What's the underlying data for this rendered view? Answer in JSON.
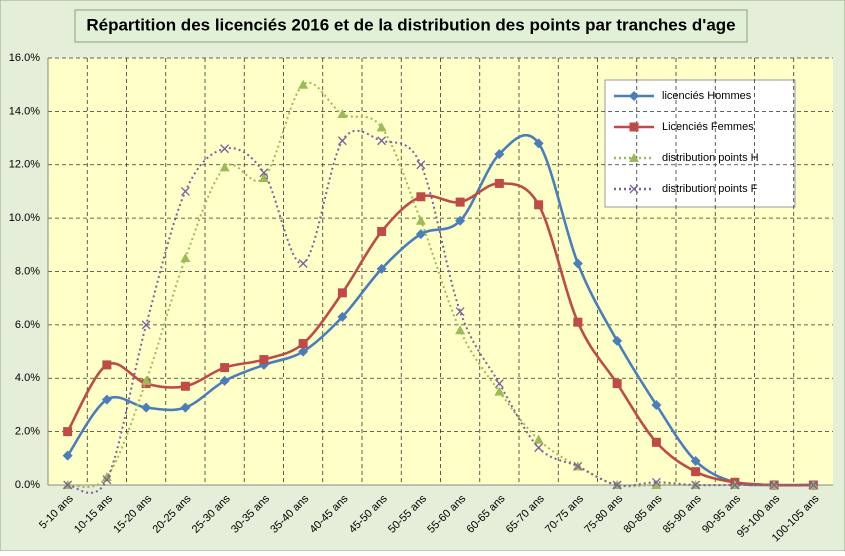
{
  "chart_data": {
    "type": "line",
    "title": "Répartition des licenciés 2016 et de la distribution des points par tranches d'age",
    "categories": [
      "5-10 ans",
      "10-15 ans",
      "15-20 ans",
      "20-25 ans",
      "25-30 ans",
      "30-35 ans",
      "35-40 ans",
      "40-45 ans",
      "45-50 ans",
      "50-55 ans",
      "55-60 ans",
      "60-65 ans",
      "65-70 ans",
      "70-75 ans",
      "75-80 ans",
      "80-85 ans",
      "85-90 ans",
      "90-95 ans",
      "95-100 ans",
      "100-105 ans"
    ],
    "series": [
      {
        "name": "licenciés Hommes",
        "color": "#4a7ebb",
        "marker": "diamond",
        "style": "solid",
        "values": [
          1.1,
          3.2,
          2.9,
          2.9,
          3.9,
          4.5,
          5.0,
          6.3,
          8.1,
          9.4,
          9.9,
          12.4,
          12.8,
          8.3,
          5.4,
          3.0,
          0.9,
          0.1,
          0,
          0
        ]
      },
      {
        "name": "Licenciés Femmes",
        "color": "#be4b48",
        "marker": "square",
        "style": "solid",
        "values": [
          2.0,
          4.5,
          3.8,
          3.7,
          4.4,
          4.7,
          5.3,
          7.2,
          9.5,
          10.8,
          10.6,
          11.3,
          10.5,
          6.1,
          3.8,
          1.6,
          0.5,
          0.1,
          0,
          0
        ]
      },
      {
        "name": "distribution points  H",
        "color": "#9bbb59",
        "marker": "triangle",
        "style": "dotted",
        "values": [
          0,
          0.3,
          3.9,
          8.5,
          11.9,
          11.5,
          15.0,
          13.9,
          13.4,
          9.9,
          5.8,
          3.5,
          1.7,
          0.7,
          0,
          0,
          0,
          0,
          0,
          0
        ]
      },
      {
        "name": "distribution points  F",
        "color": "#7d60a0",
        "marker": "x",
        "style": "dotted",
        "values": [
          0,
          0.2,
          6.0,
          11.0,
          12.6,
          11.7,
          8.3,
          12.9,
          12.9,
          12.0,
          6.5,
          3.8,
          1.4,
          0.7,
          0,
          0.1,
          0,
          0,
          0,
          0
        ]
      }
    ],
    "ylim": [
      0,
      16
    ],
    "yticks": [
      {
        "value": 0,
        "label": "0.0%"
      },
      {
        "value": 2,
        "label": "2.0%"
      },
      {
        "value": 4,
        "label": "4.0%"
      },
      {
        "value": 6,
        "label": "6.0%"
      },
      {
        "value": 8,
        "label": "8.0%"
      },
      {
        "value": 10,
        "label": "10.0%"
      },
      {
        "value": 12,
        "label": "12.0%"
      },
      {
        "value": 14,
        "label": "14.0%"
      },
      {
        "value": 16,
        "label": "16.0%"
      }
    ],
    "grid": true
  }
}
